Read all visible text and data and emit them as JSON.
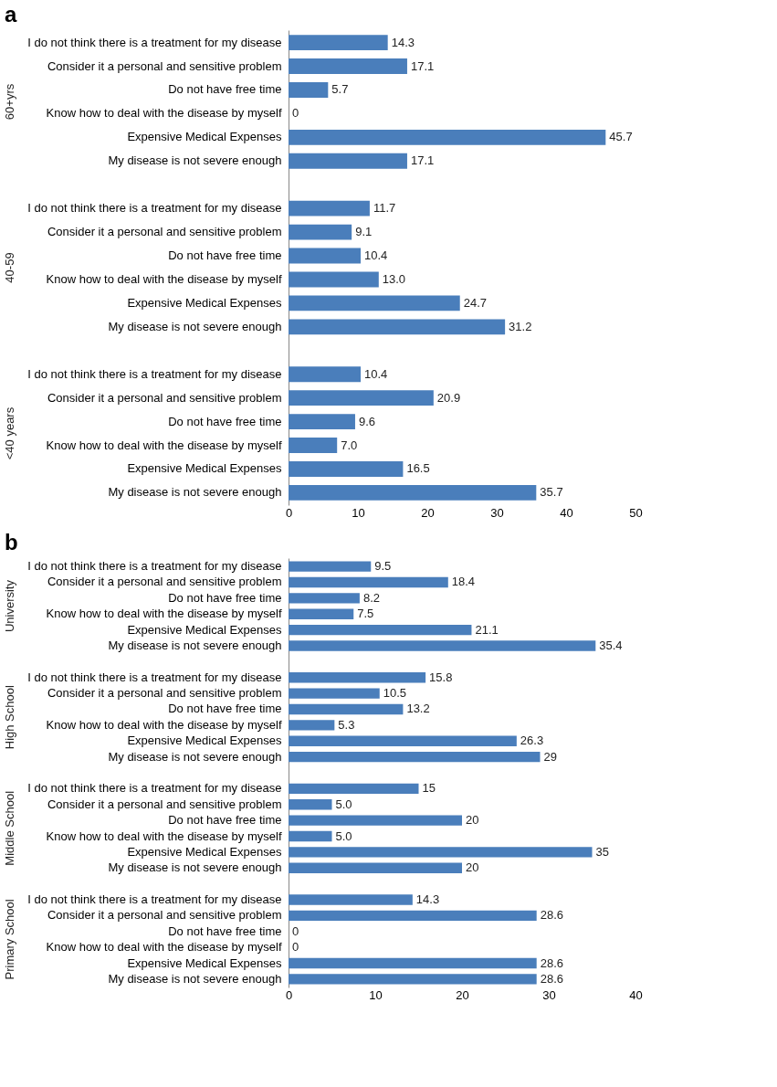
{
  "chart_data": [
    {
      "type": "bar",
      "orientation": "horizontal",
      "title": "a",
      "color": "#4a7ebb",
      "xlim": [
        0,
        50
      ],
      "xticks": [
        0,
        10,
        20,
        30,
        40,
        50
      ],
      "annotations": [
        "60+yrs",
        "40-59",
        "<40 years"
      ],
      "categories": [
        "I do not think there is a treatment for my disease",
        "Consider it a personal and sensitive problem",
        "Do not have free time",
        "Know how to deal with the disease by myself",
        "Expensive Medical Expenses",
        "My disease is not severe enough",
        "I do not think there is a treatment for my disease",
        "Consider it a personal and sensitive problem",
        "Do not have free time",
        "Know how to deal with the disease by myself",
        "Expensive Medical Expenses",
        "My disease is not severe enough",
        "I do not think there is a treatment for my disease",
        "Consider it a personal and sensitive problem",
        "Do not have free time",
        "Know how to deal with the disease by myself",
        "Expensive Medical Expenses",
        "My disease is not severe enough"
      ],
      "values": [
        14.3,
        17.1,
        5.7,
        0,
        45.7,
        17.1,
        11.7,
        9.1,
        10.4,
        13.0,
        24.7,
        31.2,
        10.4,
        20.9,
        9.6,
        7.0,
        16.5,
        35.7
      ],
      "value_labels": [
        "14.3",
        "17.1",
        "5.7",
        "0",
        "45.7",
        "17.1",
        "11.7",
        "9.1",
        "10.4",
        "13.0",
        "24.7",
        "31.2",
        "10.4",
        "20.9",
        "9.6",
        "7.0",
        "16.5",
        "35.7"
      ]
    },
    {
      "type": "bar",
      "orientation": "horizontal",
      "title": "b",
      "color": "#4a7ebb",
      "xlim": [
        0,
        40
      ],
      "xticks": [
        0,
        10,
        20,
        30,
        40
      ],
      "annotations": [
        "University",
        "High School",
        "Middle School",
        "Primary School"
      ],
      "categories": [
        "I do not think there is a treatment for my disease",
        "Consider it a personal and sensitive problem",
        "Do not have free time",
        "Know how to deal with the disease by myself",
        "Expensive Medical Expenses",
        "My disease is not severe enough",
        "I do not think there is a treatment for my disease",
        "Consider it a personal and sensitive problem",
        "Do not have free time",
        "Know how to deal with the disease by myself",
        "Expensive Medical Expenses",
        "My disease is not severe enough",
        "I do not think there is a treatment for my disease",
        "Consider it a personal and sensitive problem",
        "Do not have free time",
        "Know how to deal with the disease by myself",
        "Expensive Medical Expenses",
        "My disease is not severe enough",
        "I do not think there is a treatment for my disease",
        "Consider it a personal and sensitive problem",
        "Do not have free time",
        "Know how to deal with the disease by myself",
        "Expensive Medical Expenses",
        "My disease is not severe enough"
      ],
      "values": [
        9.5,
        18.4,
        8.2,
        7.5,
        21.1,
        35.4,
        15.8,
        10.5,
        13.2,
        5.3,
        26.3,
        29,
        15,
        5.0,
        20,
        5.0,
        35,
        20,
        14.3,
        28.6,
        0,
        0,
        28.6,
        28.6
      ],
      "value_labels": [
        "9.5",
        "18.4",
        "8.2",
        "7.5",
        "21.1",
        "35.4",
        "15.8",
        "10.5",
        "13.2",
        "5.3",
        "26.3",
        "29",
        "15",
        "5.0",
        "20",
        "5.0",
        "35",
        "20",
        "14.3",
        "28.6",
        "0",
        "0",
        "28.6",
        "28.6"
      ]
    }
  ]
}
